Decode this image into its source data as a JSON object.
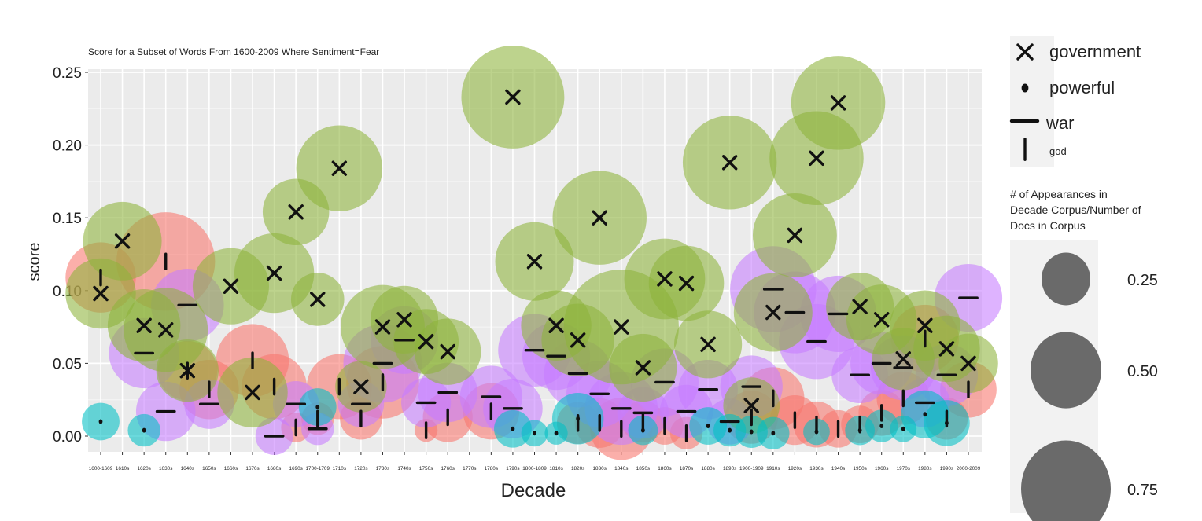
{
  "chart_data": {
    "type": "scatter",
    "title": "Score for a Subset of Words From 1600-2009 Where Sentiment=Fear",
    "xlabel": "Decade",
    "ylabel": "score",
    "ylim": [
      -0.01,
      0.25
    ],
    "y_ticks": [
      "0.00",
      "0.05",
      "0.10",
      "0.15",
      "0.20",
      "0.25"
    ],
    "y_tick_values": [
      0,
      0.05,
      0.1,
      0.15,
      0.2,
      0.25
    ],
    "grid": true,
    "categories": [
      "1600-1609",
      "1610s",
      "1620s",
      "1630s",
      "1640s",
      "1650s",
      "1660s",
      "1670s",
      "1680s",
      "1690s",
      "1700-1709",
      "1710s",
      "1720s",
      "1730s",
      "1740s",
      "1750s",
      "1760s",
      "1770s",
      "1780s",
      "1790s",
      "1800-1809",
      "1810s",
      "1820s",
      "1830s",
      "1840s",
      "1850s",
      "1860s",
      "1870s",
      "1880s",
      "1890s",
      "1900-1909",
      "1910s",
      "1920s",
      "1930s",
      "1940s",
      "1950s",
      "1960s",
      "1970s",
      "1980s",
      "1990s",
      "2000-2009"
    ],
    "tick_labels": [
      "1600-1609",
      "1610s",
      "1620s",
      "1630s",
      "1640s",
      "1650s",
      "1660s",
      "1670s",
      "1680s",
      "1690s",
      "1700-1709",
      "1710s",
      "1720s",
      "1730s",
      "1740s",
      "1750s",
      "1760s",
      "1770s",
      "1780s",
      "1790s",
      "1800-1809",
      "1810s",
      "1820s",
      "1830s",
      "1840s",
      "1850s",
      "1860s",
      "1870s",
      "1880s",
      "1890s",
      "1900-1909",
      "1910s",
      "1920s",
      "1930s",
      "1940s",
      "1950s",
      "1960s",
      "1970s",
      "1980s",
      "1990s",
      "2000-2009"
    ],
    "shape_legend": [
      {
        "label": "government",
        "shape": "x"
      },
      {
        "label": "powerful",
        "shape": "dot"
      },
      {
        "label": "war",
        "shape": "dash"
      },
      {
        "label": "god",
        "shape": "bar"
      }
    ],
    "size_legend": {
      "title_lines": [
        "# of Appearances in",
        "Decade Corpus/Number of",
        "Docs in Corpus"
      ],
      "values": [
        0.25,
        0.5,
        0.75
      ],
      "labels": [
        "0.25",
        "0.50",
        "0.75"
      ]
    },
    "colors": {
      "government": "#8db33a",
      "war": "#c77cff",
      "god": "#f8766d",
      "powerful": "#00bfc4"
    },
    "series": [
      {
        "word": "government",
        "points": [
          {
            "x": "1600-1609",
            "y": 0.098,
            "size": 0.28
          },
          {
            "x": "1610s",
            "y": 0.134,
            "size": 0.35
          },
          {
            "x": "1620s",
            "y": 0.076,
            "size": 0.3
          },
          {
            "x": "1630s",
            "y": 0.073,
            "size": 0.4
          },
          {
            "x": "1640s",
            "y": 0.045,
            "size": 0.22
          },
          {
            "x": "1660s",
            "y": 0.103,
            "size": 0.33
          },
          {
            "x": "1670s",
            "y": 0.03,
            "size": 0.28
          },
          {
            "x": "1680s",
            "y": 0.112,
            "size": 0.36
          },
          {
            "x": "1690s",
            "y": 0.154,
            "size": 0.25
          },
          {
            "x": "1700-1709",
            "y": 0.094,
            "size": 0.16
          },
          {
            "x": "1710s",
            "y": 0.184,
            "size": 0.42
          },
          {
            "x": "1720s",
            "y": 0.034,
            "size": 0.15
          },
          {
            "x": "1730s",
            "y": 0.075,
            "size": 0.4
          },
          {
            "x": "1740s",
            "y": 0.08,
            "size": 0.26
          },
          {
            "x": "1750s",
            "y": 0.065,
            "size": 0.24
          },
          {
            "x": "1760s",
            "y": 0.058,
            "size": 0.25
          },
          {
            "x": "1790s",
            "y": 0.233,
            "size": 0.6
          },
          {
            "x": "1800-1809",
            "y": 0.12,
            "size": 0.35
          },
          {
            "x": "1810s",
            "y": 0.076,
            "size": 0.28
          },
          {
            "x": "1820s",
            "y": 0.066,
            "size": 0.3
          },
          {
            "x": "1830s",
            "y": 0.15,
            "size": 0.5
          },
          {
            "x": "1840s",
            "y": 0.075,
            "size": 0.75
          },
          {
            "x": "1850s",
            "y": 0.047,
            "size": 0.26
          },
          {
            "x": "1860s",
            "y": 0.108,
            "size": 0.37
          },
          {
            "x": "1870s",
            "y": 0.105,
            "size": 0.32
          },
          {
            "x": "1880s",
            "y": 0.063,
            "size": 0.26
          },
          {
            "x": "1890s",
            "y": 0.188,
            "size": 0.5
          },
          {
            "x": "1900-1909",
            "y": 0.021,
            "size": 0.18
          },
          {
            "x": "1910s",
            "y": 0.085,
            "size": 0.35
          },
          {
            "x": "1920s",
            "y": 0.138,
            "size": 0.4
          },
          {
            "x": "1930s",
            "y": 0.191,
            "size": 0.5
          },
          {
            "x": "1940s",
            "y": 0.229,
            "size": 0.5
          },
          {
            "x": "1950s",
            "y": 0.089,
            "size": 0.26
          },
          {
            "x": "1960s",
            "y": 0.08,
            "size": 0.28
          },
          {
            "x": "1970s",
            "y": 0.053,
            "size": 0.22
          },
          {
            "x": "1980s",
            "y": 0.076,
            "size": 0.28
          },
          {
            "x": "1990s",
            "y": 0.06,
            "size": 0.25
          },
          {
            "x": "2000-2009",
            "y": 0.05,
            "size": 0.2
          }
        ]
      },
      {
        "word": "war",
        "points": [
          {
            "x": "1620s",
            "y": 0.057,
            "size": 0.28
          },
          {
            "x": "1630s",
            "y": 0.017,
            "size": 0.2
          },
          {
            "x": "1640s",
            "y": 0.09,
            "size": 0.3
          },
          {
            "x": "1650s",
            "y": 0.022,
            "size": 0.14
          },
          {
            "x": "1680s",
            "y": 0.0,
            "size": 0.08
          },
          {
            "x": "1690s",
            "y": 0.022,
            "size": 0.12
          },
          {
            "x": "1700-1709",
            "y": 0.005,
            "size": 0.06
          },
          {
            "x": "1720s",
            "y": 0.022,
            "size": 0.12
          },
          {
            "x": "1730s",
            "y": 0.05,
            "size": 0.35
          },
          {
            "x": "1740s",
            "y": 0.066,
            "size": 0.26
          },
          {
            "x": "1750s",
            "y": 0.023,
            "size": 0.14
          },
          {
            "x": "1760s",
            "y": 0.03,
            "size": 0.2
          },
          {
            "x": "1780s",
            "y": 0.027,
            "size": 0.22
          },
          {
            "x": "1790s",
            "y": 0.019,
            "size": 0.2
          },
          {
            "x": "1800-1809",
            "y": 0.059,
            "size": 0.3
          },
          {
            "x": "1810s",
            "y": 0.055,
            "size": 0.26
          },
          {
            "x": "1820s",
            "y": 0.043,
            "size": 0.26
          },
          {
            "x": "1830s",
            "y": 0.029,
            "size": 0.25
          },
          {
            "x": "1840s",
            "y": 0.019,
            "size": 0.3
          },
          {
            "x": "1850s",
            "y": 0.016,
            "size": 0.15
          },
          {
            "x": "1860s",
            "y": 0.037,
            "size": 0.26
          },
          {
            "x": "1870s",
            "y": 0.017,
            "size": 0.16
          },
          {
            "x": "1880s",
            "y": 0.032,
            "size": 0.2
          },
          {
            "x": "1890s",
            "y": 0.01,
            "size": 0.12
          },
          {
            "x": "1900-1909",
            "y": 0.034,
            "size": 0.22
          },
          {
            "x": "1910s",
            "y": 0.101,
            "size": 0.42
          },
          {
            "x": "1920s",
            "y": 0.085,
            "size": 0.38
          },
          {
            "x": "1930s",
            "y": 0.065,
            "size": 0.32
          },
          {
            "x": "1940s",
            "y": 0.084,
            "size": 0.33
          },
          {
            "x": "1950s",
            "y": 0.042,
            "size": 0.18
          },
          {
            "x": "1960s",
            "y": 0.05,
            "size": 0.22
          },
          {
            "x": "1970s",
            "y": 0.047,
            "size": 0.24
          },
          {
            "x": "1980s",
            "y": 0.023,
            "size": 0.14
          },
          {
            "x": "1990s",
            "y": 0.042,
            "size": 0.22
          },
          {
            "x": "2000-2009",
            "y": 0.095,
            "size": 0.26
          }
        ]
      },
      {
        "word": "god",
        "points": [
          {
            "x": "1600-1609",
            "y": 0.109,
            "size": 0.28
          },
          {
            "x": "1630s",
            "y": 0.12,
            "size": 0.55
          },
          {
            "x": "1640s",
            "y": 0.045,
            "size": 0.2
          },
          {
            "x": "1650s",
            "y": 0.032,
            "size": 0.2
          },
          {
            "x": "1670s",
            "y": 0.052,
            "size": 0.3
          },
          {
            "x": "1680s",
            "y": 0.034,
            "size": 0.24
          },
          {
            "x": "1690s",
            "y": 0.006,
            "size": 0.05
          },
          {
            "x": "1700-1709",
            "y": 0.012,
            "size": 0.06
          },
          {
            "x": "1710s",
            "y": 0.034,
            "size": 0.24
          },
          {
            "x": "1720s",
            "y": 0.012,
            "size": 0.1
          },
          {
            "x": "1730s",
            "y": 0.037,
            "size": 0.3
          },
          {
            "x": "1750s",
            "y": 0.004,
            "size": 0.03
          },
          {
            "x": "1760s",
            "y": 0.013,
            "size": 0.14
          },
          {
            "x": "1780s",
            "y": 0.017,
            "size": 0.18
          },
          {
            "x": "1820s",
            "y": 0.009,
            "size": 0.1
          },
          {
            "x": "1830s",
            "y": 0.009,
            "size": 0.14
          },
          {
            "x": "1840s",
            "y": 0.005,
            "size": 0.22
          },
          {
            "x": "1850s",
            "y": 0.01,
            "size": 0.1
          },
          {
            "x": "1860s",
            "y": 0.007,
            "size": 0.08
          },
          {
            "x": "1870s",
            "y": 0.002,
            "size": 0.06
          },
          {
            "x": "1900-1909",
            "y": 0.013,
            "size": 0.16
          },
          {
            "x": "1910s",
            "y": 0.026,
            "size": 0.22
          },
          {
            "x": "1920s",
            "y": 0.011,
            "size": 0.14
          },
          {
            "x": "1930s",
            "y": 0.008,
            "size": 0.12
          },
          {
            "x": "1940s",
            "y": 0.005,
            "size": 0.08
          },
          {
            "x": "1950s",
            "y": 0.008,
            "size": 0.08
          },
          {
            "x": "1960s",
            "y": 0.016,
            "size": 0.12
          },
          {
            "x": "1970s",
            "y": 0.026,
            "size": 0.16
          },
          {
            "x": "1980s",
            "y": 0.067,
            "size": 0.26
          },
          {
            "x": "1990s",
            "y": 0.012,
            "size": 0.1
          },
          {
            "x": "2000-2009",
            "y": 0.032,
            "size": 0.18
          }
        ]
      },
      {
        "word": "powerful",
        "points": [
          {
            "x": "1600-1609",
            "y": 0.01,
            "size": 0.08
          },
          {
            "x": "1620s",
            "y": 0.004,
            "size": 0.06
          },
          {
            "x": "1700-1709",
            "y": 0.02,
            "size": 0.08
          },
          {
            "x": "1790s",
            "y": 0.005,
            "size": 0.08
          },
          {
            "x": "1800-1809",
            "y": 0.002,
            "size": 0.04
          },
          {
            "x": "1810s",
            "y": 0.002,
            "size": 0.03
          },
          {
            "x": "1820s",
            "y": 0.012,
            "size": 0.15
          },
          {
            "x": "1850s",
            "y": 0.004,
            "size": 0.05
          },
          {
            "x": "1880s",
            "y": 0.007,
            "size": 0.08
          },
          {
            "x": "1890s",
            "y": 0.004,
            "size": 0.06
          },
          {
            "x": "1900-1909",
            "y": 0.003,
            "size": 0.06
          },
          {
            "x": "1910s",
            "y": 0.002,
            "size": 0.06
          },
          {
            "x": "1930s",
            "y": 0.003,
            "size": 0.04
          },
          {
            "x": "1950s",
            "y": 0.004,
            "size": 0.05
          },
          {
            "x": "1960s",
            "y": 0.007,
            "size": 0.06
          },
          {
            "x": "1970s",
            "y": 0.005,
            "size": 0.04
          },
          {
            "x": "1980s",
            "y": 0.015,
            "size": 0.13
          },
          {
            "x": "1990s",
            "y": 0.009,
            "size": 0.12
          }
        ]
      }
    ]
  }
}
